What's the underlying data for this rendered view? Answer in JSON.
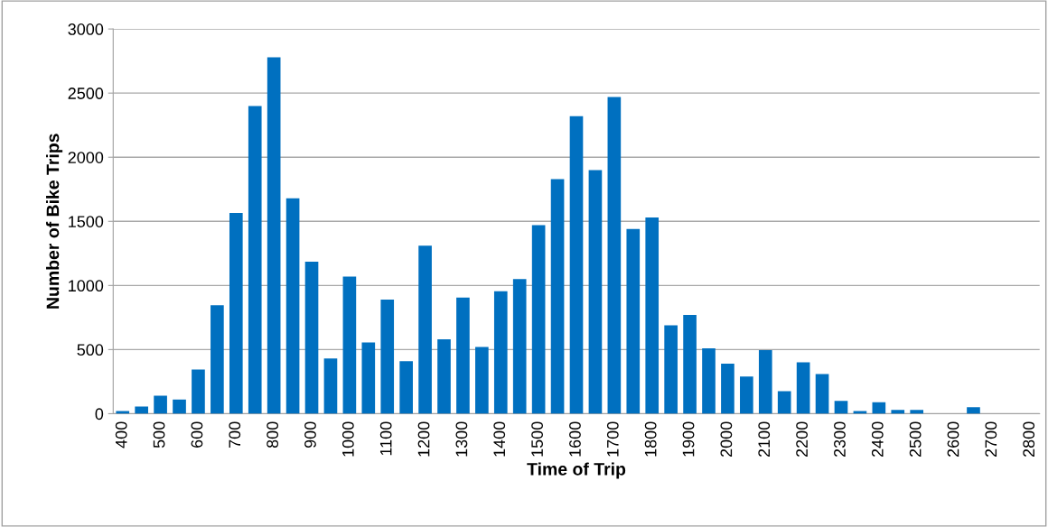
{
  "chart_data": {
    "type": "bar",
    "xlabel": "Time of Trip",
    "ylabel": "Number of Bike Trips",
    "categories": [
      "400",
      null,
      "500",
      null,
      "600",
      null,
      "700",
      null,
      "800",
      null,
      "900",
      null,
      "1000",
      null,
      "1100",
      null,
      "1200",
      null,
      "1300",
      null,
      "1400",
      null,
      "1500",
      null,
      "1600",
      null,
      "1700",
      null,
      "1800",
      null,
      "1900",
      null,
      "2000",
      null,
      "2100",
      null,
      "2200",
      null,
      "2300",
      null,
      "2400",
      null,
      "2500",
      null,
      "2600",
      null,
      "2700",
      null,
      "2800"
    ],
    "values": [
      20,
      55,
      140,
      110,
      345,
      845,
      1565,
      2400,
      2780,
      1680,
      1185,
      430,
      1070,
      555,
      890,
      410,
      1310,
      580,
      905,
      520,
      955,
      1050,
      1470,
      1830,
      2320,
      1900,
      2470,
      1440,
      1530,
      690,
      770,
      510,
      390,
      290,
      495,
      175,
      400,
      310,
      100,
      20,
      90,
      30,
      30,
      0,
      0,
      50,
      0,
      0,
      0
    ],
    "color": "#0070c0",
    "ylim": [
      0,
      3000
    ],
    "yticks": [
      0,
      500,
      1000,
      1500,
      2000,
      2500,
      3000
    ],
    "grid": "y"
  }
}
